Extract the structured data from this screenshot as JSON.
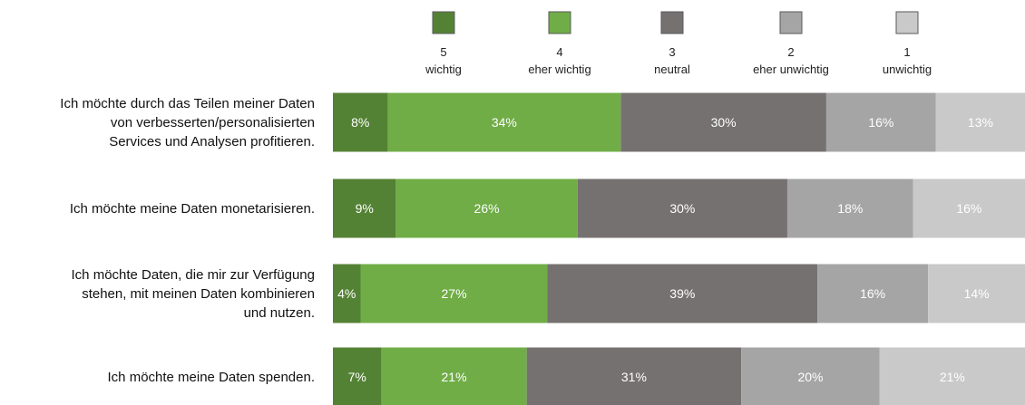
{
  "chart_data": {
    "type": "bar",
    "orientation": "horizontal",
    "stacked": true,
    "categories": [
      [
        "Ich möchte durch das Teilen meiner Daten",
        "von verbesserten/personalisierten",
        "Services und Analysen profitieren."
      ],
      [
        "Ich möchte meine Daten monetarisieren."
      ],
      [
        "Ich möchte Daten, die mir zur Verfügung",
        "stehen, mit meinen Daten kombinieren",
        "und nutzen."
      ],
      [
        "Ich möchte meine Daten spenden."
      ]
    ],
    "series": [
      {
        "name": "5",
        "sublabel": "wichtig",
        "color": "#548235",
        "values": [
          8,
          9,
          4,
          7
        ]
      },
      {
        "name": "4",
        "sublabel": "eher wichtig",
        "color": "#70ad47",
        "values": [
          34,
          26,
          27,
          21
        ]
      },
      {
        "name": "3",
        "sublabel": "neutral",
        "color": "#767171",
        "values": [
          30,
          30,
          39,
          31
        ]
      },
      {
        "name": "2",
        "sublabel": "eher unwichtig",
        "color": "#a5a5a5",
        "values": [
          16,
          18,
          16,
          20
        ]
      },
      {
        "name": "1",
        "sublabel": "unwichtig",
        "color": "#c9c9c9",
        "values": [
          13,
          16,
          14,
          21
        ]
      }
    ],
    "value_suffix": "%",
    "legend_position": "top",
    "grid": false
  }
}
